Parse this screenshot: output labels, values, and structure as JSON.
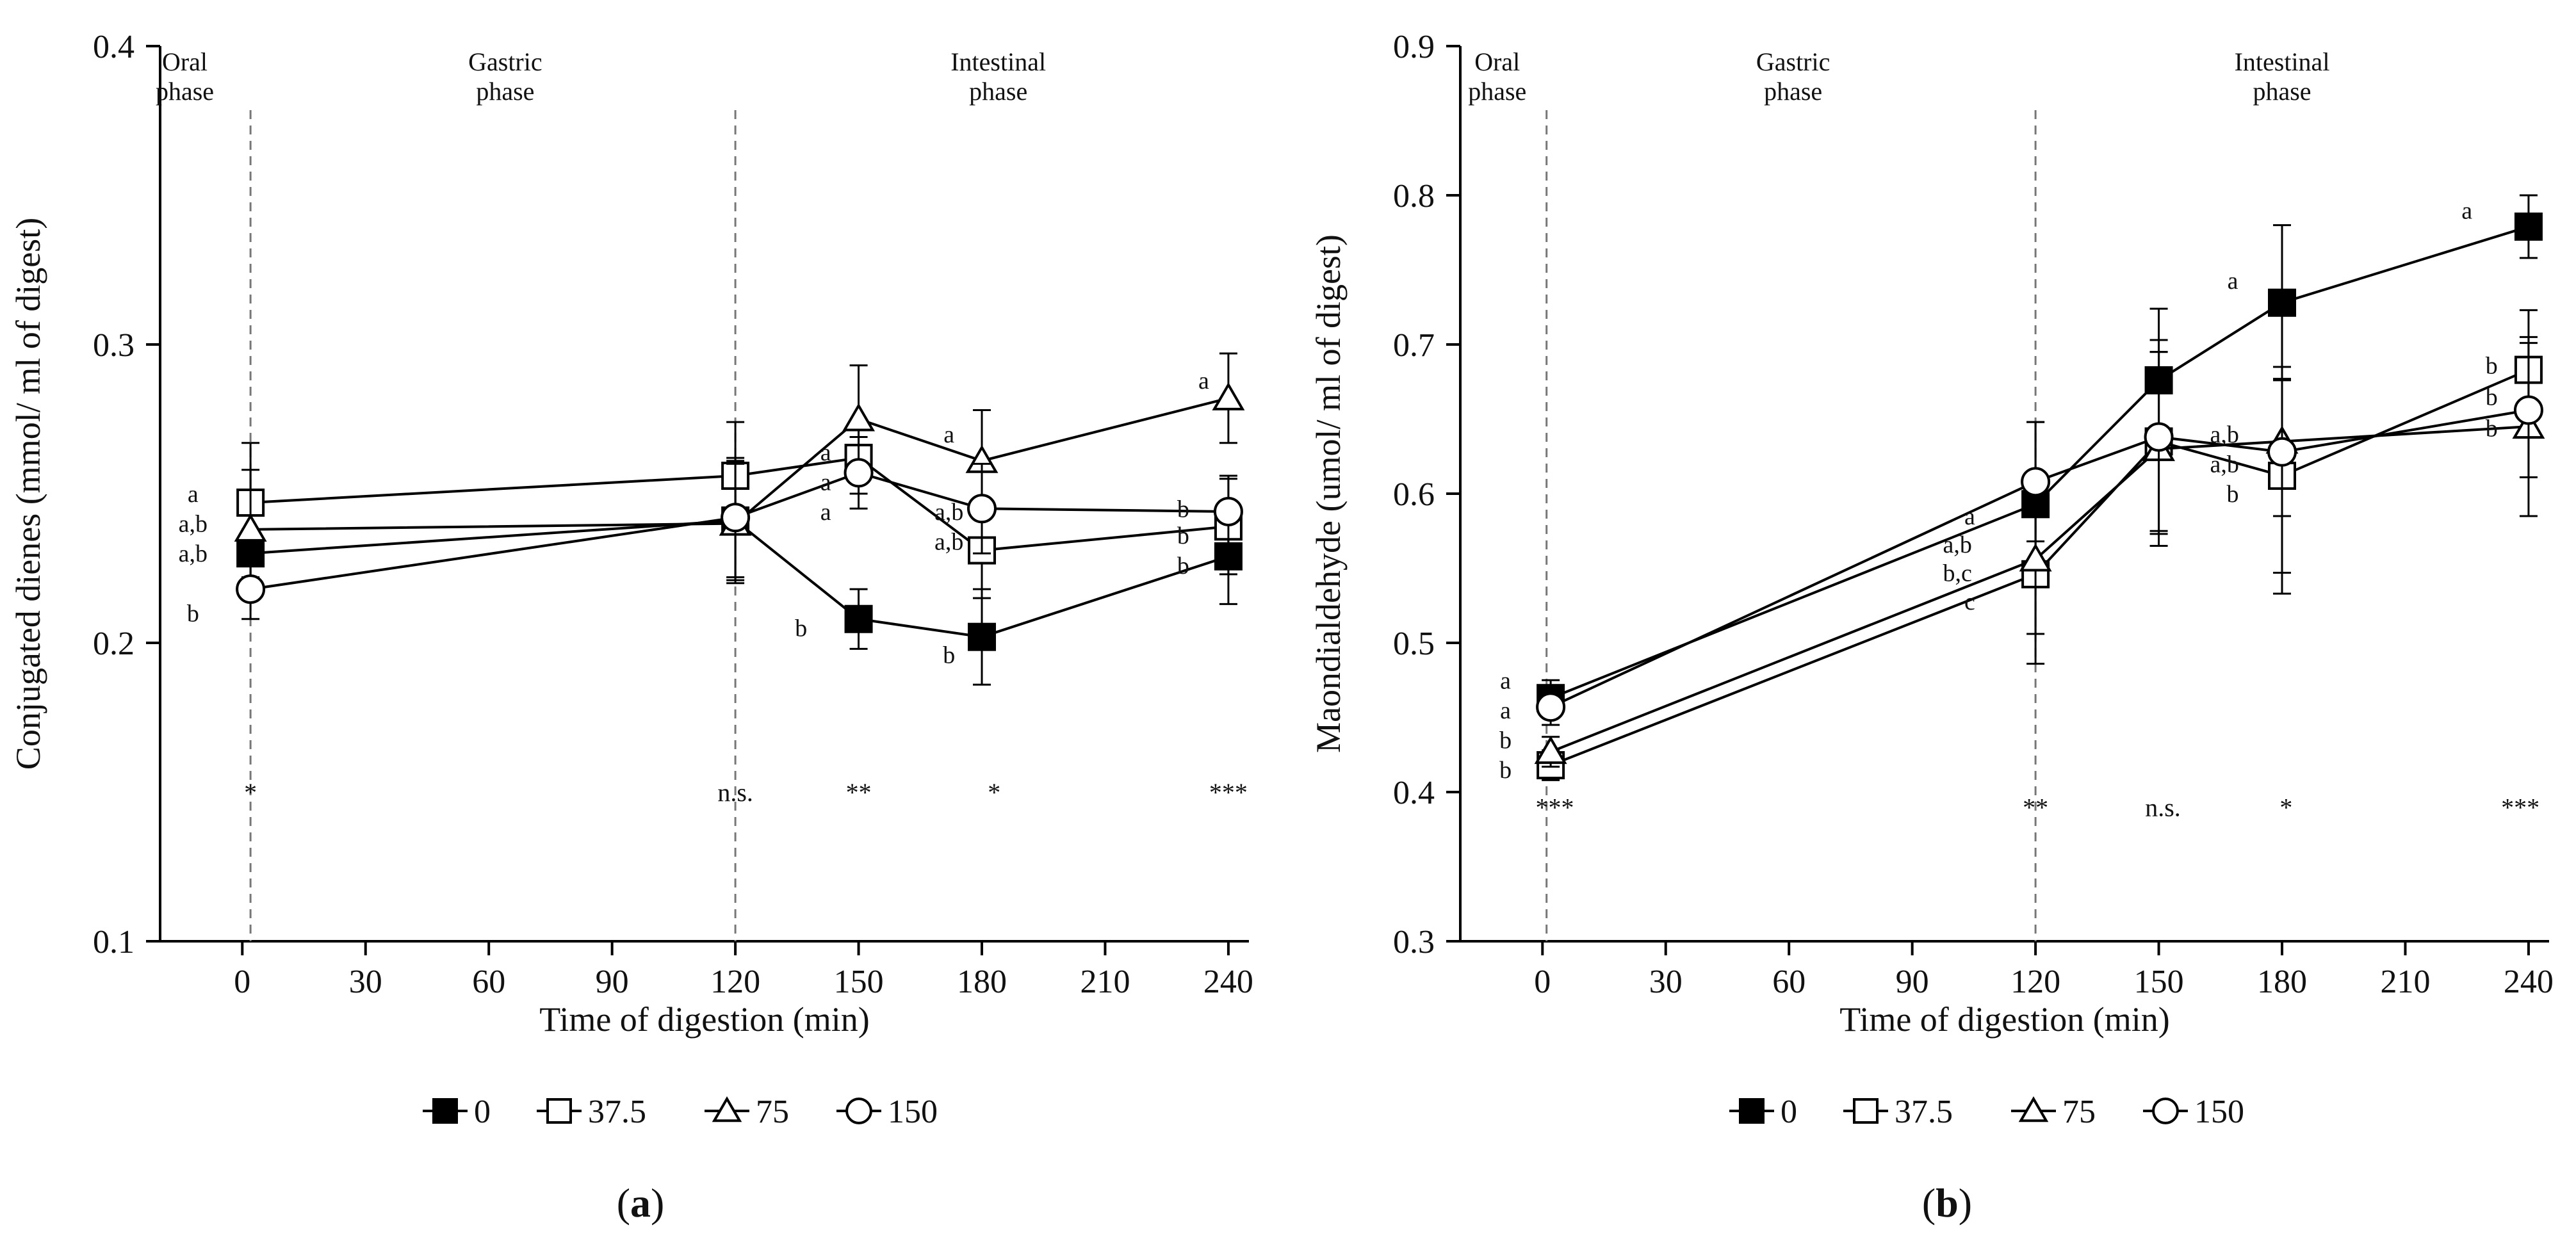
{
  "chart_data": [
    {
      "type": "line",
      "panel_label_open": "(",
      "panel_label_letter": "a",
      "panel_label_close": ")",
      "xlabel": "Time of digestion (min)",
      "ylabel": "Conjugated dienes (mmol/ ml of digest)",
      "xlim": [
        -20,
        245
      ],
      "ylim": [
        0.1,
        0.4
      ],
      "xticks": [
        0,
        30,
        60,
        90,
        120,
        150,
        180,
        210,
        240
      ],
      "yticks": [
        0.1,
        0.2,
        0.3,
        0.4
      ],
      "ytick_labels": [
        "0.1",
        "0.2",
        "0.3",
        "0.4"
      ],
      "phases": [
        {
          "line1": "Oral",
          "line2": "phase",
          "x": -14
        },
        {
          "line1": "Gastric",
          "line2": "phase",
          "x": 64
        },
        {
          "line1": "Intestinal",
          "line2": "phase",
          "x": 184
        }
      ],
      "phase_dividers": [
        2,
        120
      ],
      "significance": [
        {
          "x": 2,
          "label": "*"
        },
        {
          "x": 120,
          "label": "n.s."
        },
        {
          "x": 150,
          "label": "**"
        },
        {
          "x": 183,
          "label": "*"
        },
        {
          "x": 240,
          "label": "***"
        }
      ],
      "sig_y": 0.15,
      "series": [
        {
          "name": "0",
          "marker": "square",
          "fill": "#000000",
          "x": [
            2,
            120,
            150,
            180,
            240
          ],
          "y": [
            0.23,
            0.241,
            0.208,
            0.202,
            0.229
          ],
          "err": [
            0.008,
            0.02,
            0.01,
            0.016,
            0.016
          ]
        },
        {
          "name": "37.5",
          "marker": "square",
          "fill": "#ffffff",
          "x": [
            2,
            120,
            150,
            180,
            240
          ],
          "y": [
            0.247,
            0.256,
            0.262,
            0.231,
            0.239
          ],
          "err": [
            0.02,
            0.018,
            0.012,
            0.016,
            0.016
          ]
        },
        {
          "name": "75",
          "marker": "triangle",
          "fill": "#ffffff",
          "x": [
            2,
            120,
            150,
            180,
            240
          ],
          "y": [
            0.238,
            0.24,
            0.275,
            0.261,
            0.282
          ],
          "err": [
            0.02,
            0.02,
            0.018,
            0.017,
            0.015
          ]
        },
        {
          "name": "150",
          "marker": "circle",
          "fill": "#ffffff",
          "x": [
            2,
            120,
            150,
            180,
            240
          ],
          "y": [
            0.218,
            0.242,
            0.257,
            0.245,
            0.244
          ],
          "err": [
            0.01,
            0.02,
            0.012,
            0.015,
            0.012
          ]
        }
      ],
      "annotations": [
        {
          "text": "a",
          "x": -12,
          "y": 0.25
        },
        {
          "text": "a,b",
          "x": -12,
          "y": 0.24
        },
        {
          "text": "a,b",
          "x": -12,
          "y": 0.23
        },
        {
          "text": "b",
          "x": -12,
          "y": 0.21
        },
        {
          "text": "a",
          "x": 142,
          "y": 0.264
        },
        {
          "text": "a",
          "x": 142,
          "y": 0.254
        },
        {
          "text": "a",
          "x": 142,
          "y": 0.244
        },
        {
          "text": "b",
          "x": 136,
          "y": 0.205
        },
        {
          "text": "a",
          "x": 172,
          "y": 0.27
        },
        {
          "text": "a,b",
          "x": 172,
          "y": 0.244
        },
        {
          "text": "a,b",
          "x": 172,
          "y": 0.234
        },
        {
          "text": "b",
          "x": 172,
          "y": 0.196
        },
        {
          "text": "a",
          "x": 234,
          "y": 0.288
        },
        {
          "text": "b",
          "x": 229,
          "y": 0.245
        },
        {
          "text": "b",
          "x": 229,
          "y": 0.236
        },
        {
          "text": "b",
          "x": 229,
          "y": 0.226
        }
      ],
      "legend": [
        {
          "name": "0",
          "marker": "square",
          "fill": "#000000"
        },
        {
          "name": "37.5",
          "marker": "square",
          "fill": "#ffffff"
        },
        {
          "name": "75",
          "marker": "triangle",
          "fill": "#ffffff"
        },
        {
          "name": "150",
          "marker": "circle",
          "fill": "#ffffff"
        }
      ]
    },
    {
      "type": "line",
      "panel_label_open": "(",
      "panel_label_letter": "b",
      "panel_label_close": ")",
      "xlabel": "Time of digestion (min)",
      "ylabel": "Maondialdehyde (umol/ ml of digest)",
      "xlim": [
        -20,
        245
      ],
      "ylim": [
        0.3,
        0.9
      ],
      "xticks": [
        0,
        30,
        60,
        90,
        120,
        150,
        180,
        210,
        240
      ],
      "yticks": [
        0.3,
        0.4,
        0.5,
        0.6,
        0.7,
        0.8,
        0.9
      ],
      "ytick_labels": [
        "0.3",
        "0.4",
        "0.5",
        "0.6",
        "0.7",
        "0.8",
        "0.9"
      ],
      "phases": [
        {
          "line1": "Oral",
          "line2": "phase",
          "x": -11
        },
        {
          "line1": "Gastric",
          "line2": "phase",
          "x": 61
        },
        {
          "line1": "Intestinal",
          "line2": "phase",
          "x": 180
        }
      ],
      "phase_dividers": [
        1,
        120
      ],
      "significance": [
        {
          "x": 3,
          "label": "***"
        },
        {
          "x": 120,
          "label": "**"
        },
        {
          "x": 151,
          "label": "n.s."
        },
        {
          "x": 181,
          "label": "*"
        },
        {
          "x": 238,
          "label": "***"
        }
      ],
      "sig_y": 0.39,
      "series": [
        {
          "name": "0",
          "marker": "square",
          "fill": "#000000",
          "x": [
            2,
            120,
            150,
            180,
            240
          ],
          "y": [
            0.463,
            0.593,
            0.676,
            0.728,
            0.779
          ],
          "err": [
            0.012,
            0.055,
            0.048,
            0.052,
            0.021
          ]
        },
        {
          "name": "37.5",
          "marker": "square",
          "fill": "#ffffff",
          "x": [
            2,
            120,
            150,
            180,
            240
          ],
          "y": [
            0.418,
            0.546,
            0.635,
            0.612,
            0.683
          ],
          "err": [
            0.01,
            0.06,
            0.06,
            0.065,
            0.04
          ]
        },
        {
          "name": "75",
          "marker": "triangle",
          "fill": "#ffffff",
          "x": [
            2,
            120,
            150,
            180,
            240
          ],
          "y": [
            0.427,
            0.556,
            0.63,
            0.635,
            0.645
          ],
          "err": [
            0.01,
            0.05,
            0.065,
            0.05,
            0.06
          ]
        },
        {
          "name": "150",
          "marker": "circle",
          "fill": "#ffffff",
          "x": [
            2,
            120,
            150,
            180,
            240
          ],
          "y": [
            0.457,
            0.608,
            0.638,
            0.628,
            0.656
          ],
          "err": [
            0.012,
            0.04,
            0.065,
            0.095,
            0.045
          ]
        }
      ],
      "annotations": [
        {
          "text": "a",
          "x": -9,
          "y": 0.475
        },
        {
          "text": "a",
          "x": -9,
          "y": 0.455
        },
        {
          "text": "b",
          "x": -9,
          "y": 0.435
        },
        {
          "text": "b",
          "x": -9,
          "y": 0.415
        },
        {
          "text": "a",
          "x": 104,
          "y": 0.585
        },
        {
          "text": "a,b",
          "x": 101,
          "y": 0.566
        },
        {
          "text": "b,c",
          "x": 101,
          "y": 0.547
        },
        {
          "text": "c",
          "x": 104,
          "y": 0.528
        },
        {
          "text": "a",
          "x": 168,
          "y": 0.743
        },
        {
          "text": "a,b",
          "x": 166,
          "y": 0.64
        },
        {
          "text": "a,b",
          "x": 166,
          "y": 0.62
        },
        {
          "text": "b",
          "x": 168,
          "y": 0.6
        },
        {
          "text": "a",
          "x": 225,
          "y": 0.79
        },
        {
          "text": "b",
          "x": 231,
          "y": 0.686
        },
        {
          "text": "b",
          "x": 231,
          "y": 0.665
        },
        {
          "text": "b",
          "x": 231,
          "y": 0.644
        }
      ],
      "legend": [
        {
          "name": "0",
          "marker": "square",
          "fill": "#000000"
        },
        {
          "name": "37.5",
          "marker": "square",
          "fill": "#ffffff"
        },
        {
          "name": "75",
          "marker": "triangle",
          "fill": "#ffffff"
        },
        {
          "name": "150",
          "marker": "circle",
          "fill": "#ffffff"
        }
      ]
    }
  ]
}
